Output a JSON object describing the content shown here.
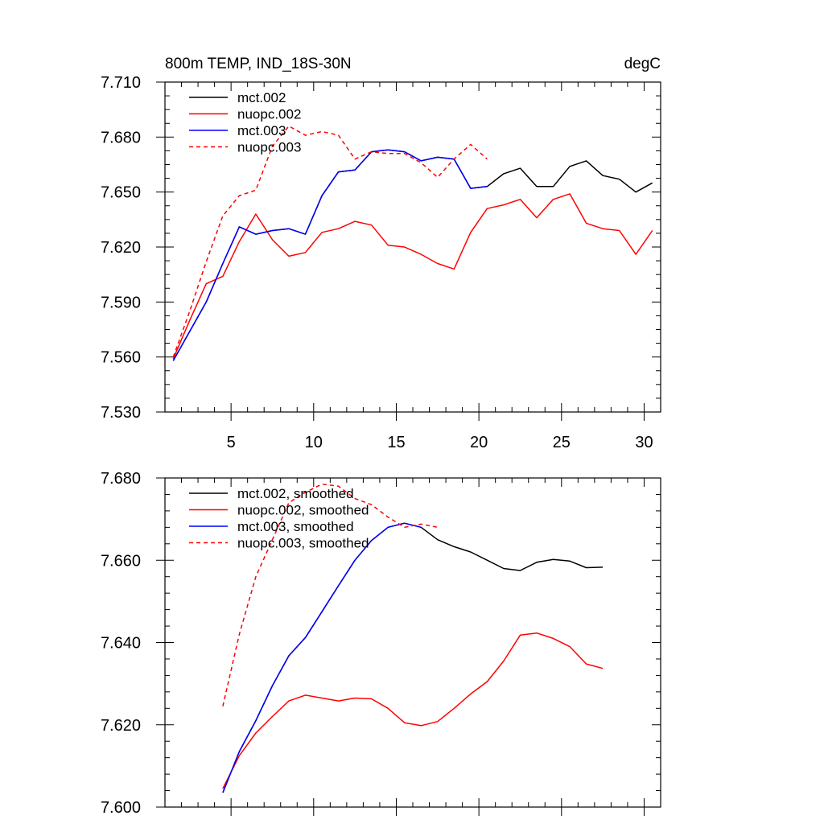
{
  "chart_data": [
    {
      "type": "line",
      "title": "800m TEMP, IND_18S-30N",
      "units": "degC",
      "xlim": [
        1,
        31
      ],
      "ylim": [
        7.53,
        7.71
      ],
      "xticks": [
        5,
        10,
        15,
        20,
        25,
        30
      ],
      "yticks": [
        "7.530",
        "7.560",
        "7.590",
        "7.620",
        "7.650",
        "7.680",
        "7.710"
      ],
      "legend_position": "top-left",
      "series": [
        {
          "name": "mct.002",
          "color": "#000000",
          "dash": "solid",
          "x": [
            1.5,
            2.5,
            3.5,
            4.5,
            5.5,
            6.5,
            7.5,
            8.5,
            9.5,
            10.5,
            11.5,
            12.5,
            13.5,
            14.5,
            15.5,
            16.5,
            17.5,
            18.5,
            19.5,
            20.5,
            21.5,
            22.5,
            23.5,
            24.5,
            25.5,
            26.5,
            27.5,
            28.5,
            29.5,
            30.5
          ],
          "y": [
            7.558,
            7.574,
            7.59,
            7.611,
            7.631,
            7.627,
            7.629,
            7.63,
            7.627,
            7.648,
            7.661,
            7.662,
            7.672,
            7.673,
            7.672,
            7.667,
            7.669,
            7.668,
            7.652,
            7.653,
            7.66,
            7.663,
            7.653,
            7.653,
            7.664,
            7.667,
            7.659,
            7.657,
            7.65,
            7.655
          ]
        },
        {
          "name": "nuopc.002",
          "color": "#ff0000",
          "dash": "solid",
          "x": [
            1.5,
            2.5,
            3.5,
            4.5,
            5.5,
            6.5,
            7.5,
            8.5,
            9.5,
            10.5,
            11.5,
            12.5,
            13.5,
            14.5,
            15.5,
            16.5,
            17.5,
            18.5,
            19.5,
            20.5,
            21.5,
            22.5,
            23.5,
            24.5,
            25.5,
            26.5,
            27.5,
            28.5,
            29.5,
            30.5
          ],
          "y": [
            7.559,
            7.58,
            7.6,
            7.604,
            7.623,
            7.638,
            7.624,
            7.615,
            7.617,
            7.628,
            7.63,
            7.634,
            7.632,
            7.621,
            7.62,
            7.616,
            7.611,
            7.608,
            7.628,
            7.641,
            7.643,
            7.646,
            7.636,
            7.646,
            7.649,
            7.633,
            7.63,
            7.629,
            7.616,
            7.629
          ]
        },
        {
          "name": "mct.003",
          "color": "#0000ff",
          "dash": "solid",
          "x": [
            1.5,
            2.5,
            3.5,
            4.5,
            5.5,
            6.5,
            7.5,
            8.5,
            9.5,
            10.5,
            11.5,
            12.5,
            13.5,
            14.5,
            15.5,
            16.5,
            17.5,
            18.5,
            19.5,
            20.5
          ],
          "y": [
            7.558,
            7.574,
            7.59,
            7.611,
            7.631,
            7.627,
            7.629,
            7.63,
            7.627,
            7.648,
            7.661,
            7.662,
            7.672,
            7.673,
            7.672,
            7.667,
            7.669,
            7.668,
            7.652,
            7.653
          ]
        },
        {
          "name": "nuopc.003",
          "color": "#ff0000",
          "dash": "dashed",
          "x": [
            1.5,
            2.5,
            3.5,
            4.5,
            5.5,
            6.5,
            7.5,
            8.5,
            9.5,
            10.5,
            11.5,
            12.5,
            13.5,
            14.5,
            15.5,
            16.5,
            17.5,
            18.5,
            19.5,
            20.5
          ],
          "y": [
            7.56,
            7.585,
            7.612,
            7.637,
            7.648,
            7.651,
            7.675,
            7.686,
            7.681,
            7.683,
            7.681,
            7.668,
            7.672,
            7.671,
            7.671,
            7.666,
            7.658,
            7.668,
            7.676,
            7.668
          ]
        }
      ]
    },
    {
      "type": "line",
      "title": "",
      "xlim": [
        1,
        31
      ],
      "ylim": [
        7.6,
        7.68
      ],
      "xticks": [
        5,
        10,
        15,
        20,
        25,
        30
      ],
      "yticks": [
        "7.600",
        "7.620",
        "7.640",
        "7.660",
        "7.680"
      ],
      "legend_position": "top-left",
      "series": [
        {
          "name": "mct.002, smoothed",
          "color": "#000000",
          "dash": "solid",
          "x": [
            4.5,
            5.5,
            6.5,
            7.5,
            8.5,
            9.5,
            10.5,
            11.5,
            12.5,
            13.5,
            14.5,
            15.5,
            16.5,
            17.5,
            18.5,
            19.5,
            20.5,
            21.5,
            22.5,
            23.5,
            24.5,
            25.5,
            26.5,
            27.5
          ],
          "y": [
            7.6035,
            7.6135,
            7.621,
            7.6295,
            7.6368,
            7.6412,
            7.6475,
            7.6538,
            7.66,
            7.6648,
            7.668,
            7.669,
            7.668,
            7.665,
            7.6633,
            7.662,
            7.66,
            7.658,
            7.6575,
            7.6595,
            7.6602,
            7.6598,
            7.6582,
            7.6583
          ]
        },
        {
          "name": "nuopc.002, smoothed",
          "color": "#ff0000",
          "dash": "solid",
          "x": [
            4.5,
            5.5,
            6.5,
            7.5,
            8.5,
            9.5,
            10.5,
            11.5,
            12.5,
            13.5,
            14.5,
            15.5,
            16.5,
            17.5,
            18.5,
            19.5,
            20.5,
            21.5,
            22.5,
            23.5,
            24.5,
            25.5,
            26.5,
            27.5
          ],
          "y": [
            7.6045,
            7.6125,
            7.618,
            7.622,
            7.6258,
            7.6272,
            7.6265,
            7.6258,
            7.6265,
            7.6263,
            7.624,
            7.6205,
            7.6198,
            7.6208,
            7.624,
            7.6275,
            7.6305,
            7.6355,
            7.6418,
            7.6423,
            7.641,
            7.639,
            7.6348,
            7.6337
          ]
        },
        {
          "name": "mct.003, smoothed",
          "color": "#0000ff",
          "dash": "solid",
          "x": [
            4.5,
            5.5,
            6.5,
            7.5,
            8.5,
            9.5,
            10.5,
            11.5,
            12.5,
            13.5,
            14.5,
            15.5,
            16.5
          ],
          "y": [
            7.6035,
            7.6135,
            7.621,
            7.6295,
            7.6368,
            7.6412,
            7.6475,
            7.6538,
            7.66,
            7.6648,
            7.668,
            7.669,
            7.668
          ]
        },
        {
          "name": "nuopc.003, smoothed",
          "color": "#ff0000",
          "dash": "dashed",
          "x": [
            4.5,
            5.5,
            6.5,
            7.5,
            8.5,
            9.5,
            10.5,
            11.5,
            12.5,
            13.5,
            14.5,
            15.5,
            16.5,
            17.5
          ],
          "y": [
            7.6245,
            7.642,
            7.656,
            7.665,
            7.674,
            7.6765,
            7.6785,
            7.678,
            7.675,
            7.6735,
            7.6705,
            7.668,
            7.6688,
            7.668
          ]
        }
      ]
    }
  ]
}
